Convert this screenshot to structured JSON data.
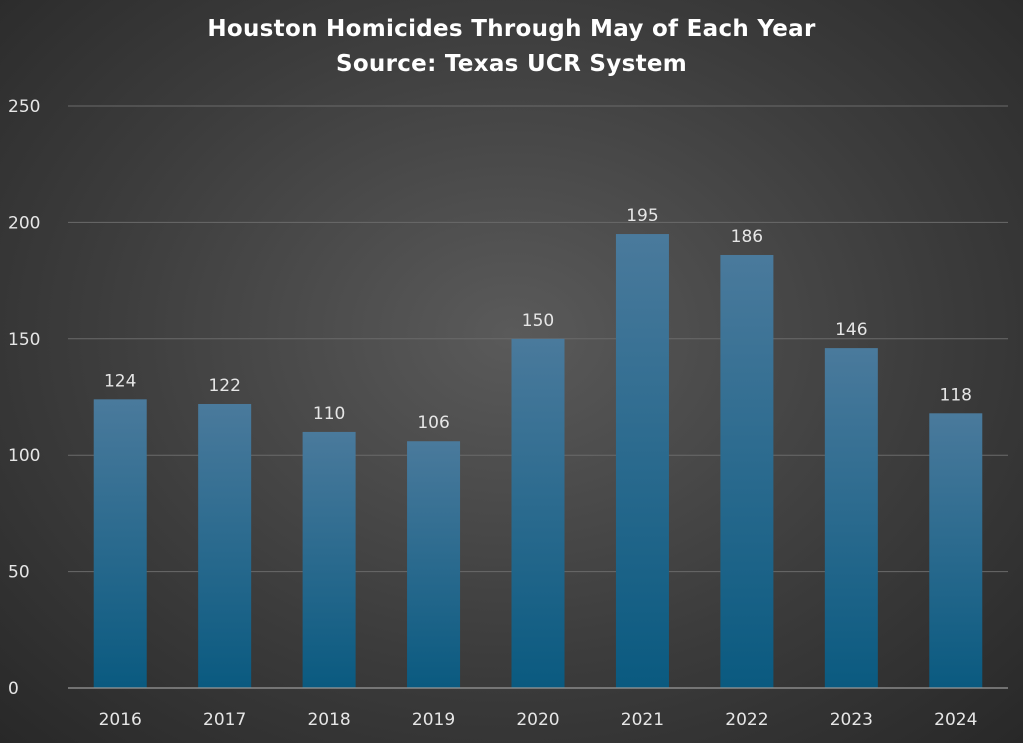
{
  "chart_data": {
    "type": "bar",
    "title": "Houston Homicides Through May of Each Year",
    "subtitle": "Source: Texas UCR System",
    "categories": [
      "2016",
      "2017",
      "2018",
      "2019",
      "2020",
      "2021",
      "2022",
      "2023",
      "2024"
    ],
    "values": [
      124,
      122,
      110,
      106,
      150,
      195,
      186,
      146,
      118
    ],
    "xlabel": "",
    "ylabel": "",
    "ylim": [
      0,
      250
    ],
    "yticks": [
      0,
      50,
      100,
      150,
      200,
      250
    ],
    "grid": true,
    "legend": "none",
    "data_labels": true,
    "colors": {
      "bar_top": "#4a7a9c",
      "bar_bottom": "#0a5a80",
      "text": "#e6e6e6",
      "title": "#ffffff"
    }
  }
}
